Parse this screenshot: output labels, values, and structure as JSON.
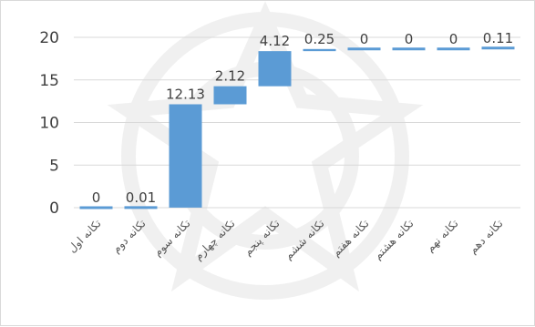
{
  "colors": {
    "bar": "#5b9bd5",
    "grid": "#d9d9d9",
    "text": "#404040",
    "background": "#ffffff"
  },
  "chart_data": {
    "type": "bar",
    "subtype": "waterfall",
    "categories": [
      "تکانه اول",
      "تکانه دوم",
      "تکانه سوم",
      "تکانه چهارم",
      "تکانه پنجم",
      "تکانه ششم",
      "تکانه هفتم",
      "تکانه هشتم",
      "تکانه نهم",
      "تکانه دهم"
    ],
    "values": [
      0,
      0.01,
      12.13,
      2.12,
      4.12,
      0.25,
      0,
      0,
      0,
      0.11
    ],
    "data_labels": [
      "0",
      "0.01",
      "12.13",
      "2.12",
      "4.12",
      "0.25",
      "0",
      "0",
      "0",
      "0.11"
    ],
    "y_ticks": [
      "0",
      "5",
      "10",
      "15",
      "20"
    ],
    "ylim": [
      0,
      20
    ],
    "grid": true,
    "legend": "none"
  }
}
